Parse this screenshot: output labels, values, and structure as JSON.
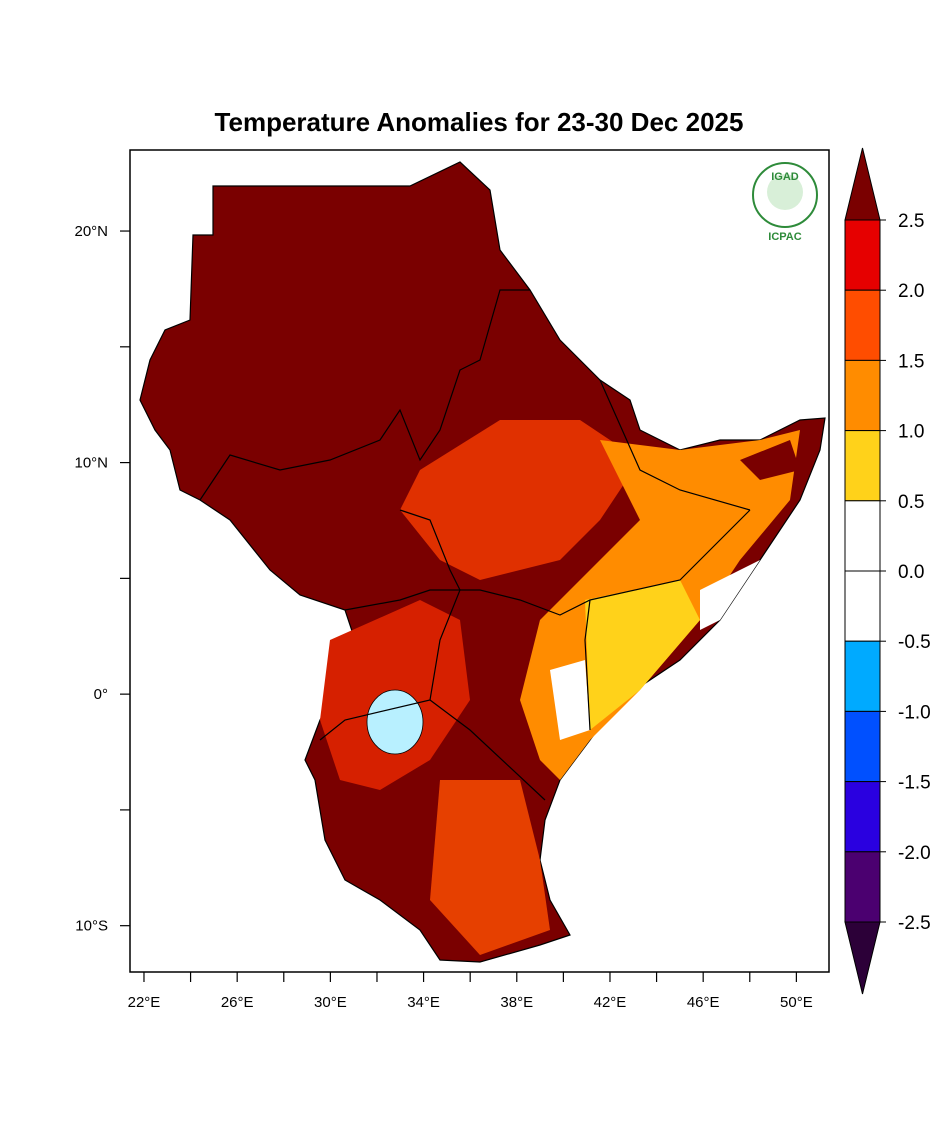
{
  "map": {
    "title": "Temperature Anomalies for 23-30 Dec 2025",
    "logo": {
      "top": "IGAD",
      "bottom": "ICPAC"
    },
    "xlim": [
      21.4,
      51.4
    ],
    "ylim": [
      -12.0,
      23.5
    ],
    "xticks": [
      {
        "value": 22,
        "label": "22°E"
      },
      {
        "value": 26,
        "label": "26°E"
      },
      {
        "value": 30,
        "label": "30°E"
      },
      {
        "value": 34,
        "label": "34°E"
      },
      {
        "value": 38,
        "label": "38°E"
      },
      {
        "value": 42,
        "label": "42°E"
      },
      {
        "value": 46,
        "label": "46°E"
      },
      {
        "value": 50,
        "label": "50°E"
      }
    ],
    "xminorticks": [
      24,
      28,
      32,
      36,
      40,
      44,
      48
    ],
    "yticks": [
      {
        "value": 20,
        "label": "20°N"
      },
      {
        "value": 10,
        "label": "10°N"
      },
      {
        "value": 0,
        "label": "0°"
      },
      {
        "value": -10,
        "label": "10°S"
      }
    ],
    "yminorticks": [
      15,
      5,
      -5
    ],
    "colorbar": {
      "levels": [
        {
          "value": 2.5,
          "label": "2.5"
        },
        {
          "value": 2,
          "label": "2.0"
        },
        {
          "value": 1.5,
          "label": "1.5"
        },
        {
          "value": 1,
          "label": "1.0"
        },
        {
          "value": 0.5,
          "label": "0.5"
        },
        {
          "value": 0,
          "label": "0.0"
        },
        {
          "value": -0.5,
          "label": "-0.5"
        },
        {
          "value": -1,
          "label": "-1.0"
        },
        {
          "value": -1.5,
          "label": "-1.5"
        },
        {
          "value": -2,
          "label": "-2.0"
        },
        {
          "value": -2.5,
          "label": "-2.5"
        }
      ],
      "colors": [
        "#7a0000",
        "#e60000",
        "#ff4d00",
        "#ff8c00",
        "#ffd21a",
        "#ffffff",
        "#ffffff",
        "#00aaff",
        "#0050ff",
        "#2a00e0",
        "#4b0070",
        "#2c0038"
      ]
    }
  }
}
